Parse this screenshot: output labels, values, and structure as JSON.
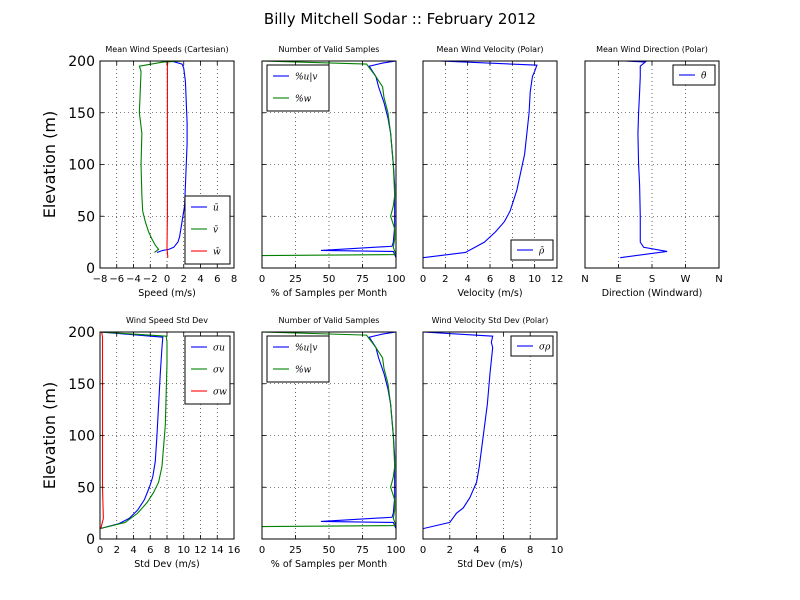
{
  "figure": {
    "title": "Billy Mitchell Sodar :: February 2012"
  },
  "chart_data": [
    {
      "type": "line",
      "title": "Mean Wind Speeds (Cartesian)",
      "xlabel": "Speed (m/s)",
      "ylabel": "Elevation (m)",
      "xlim": [
        -8,
        8
      ],
      "ylim": [
        0,
        200
      ],
      "xticks": [
        -8,
        -6,
        -4,
        -2,
        0,
        2,
        4,
        6,
        8
      ],
      "xtick_labels": [
        "−8",
        "−6",
        "−4",
        "−2",
        "0",
        "2",
        "4",
        "6",
        "8"
      ],
      "yticks": [
        0,
        50,
        100,
        150,
        200
      ],
      "ytick_labels": [
        "0",
        "50",
        "100",
        "150",
        "200"
      ],
      "grid": true,
      "legend": "lower-right",
      "series": [
        {
          "name": "ū",
          "color": "#0000ff",
          "points": [
            [
              -1.2,
              15
            ],
            [
              -0.5,
              17
            ],
            [
              0.2,
              18
            ],
            [
              0.8,
              20
            ],
            [
              1.3,
              25
            ],
            [
              1.5,
              30
            ],
            [
              1.7,
              40
            ],
            [
              1.9,
              50
            ],
            [
              2.1,
              60
            ],
            [
              2.2,
              80
            ],
            [
              2.3,
              100
            ],
            [
              2.4,
              120
            ],
            [
              2.4,
              140
            ],
            [
              2.3,
              160
            ],
            [
              2.2,
              180
            ],
            [
              2.0,
              193
            ],
            [
              1.8,
              197
            ],
            [
              0.5,
              200
            ]
          ]
        },
        {
          "name": "v̄",
          "color": "#008000",
          "points": [
            [
              -1.5,
              15
            ],
            [
              -1.0,
              18
            ],
            [
              -1.4,
              22
            ],
            [
              -1.8,
              28
            ],
            [
              -2.2,
              35
            ],
            [
              -2.6,
              45
            ],
            [
              -2.9,
              55
            ],
            [
              -3.0,
              70
            ],
            [
              -3.1,
              100
            ],
            [
              -3.0,
              130
            ],
            [
              -3.3,
              150
            ],
            [
              -3.2,
              170
            ],
            [
              -3.1,
              190
            ],
            [
              -3.3,
              195
            ],
            [
              -0.5,
              199
            ],
            [
              2.0,
              200
            ]
          ]
        },
        {
          "name": "w̄",
          "color": "#ff0000",
          "points": [
            [
              0.1,
              10
            ],
            [
              0.0,
              20
            ],
            [
              0.05,
              50
            ],
            [
              0.05,
              100
            ],
            [
              0.05,
              150
            ],
            [
              0.05,
              195
            ],
            [
              0.1,
              200
            ]
          ]
        }
      ]
    },
    {
      "type": "line",
      "title": "Number of Valid Samples",
      "xlabel": "% of Samples per Month",
      "ylabel": "",
      "xlim": [
        0,
        100
      ],
      "ylim": [
        0,
        200
      ],
      "xticks": [
        0,
        25,
        50,
        75,
        100
      ],
      "xtick_labels": [
        "0",
        "25",
        "50",
        "75",
        "100"
      ],
      "yticks": [
        0,
        50,
        100,
        150,
        200
      ],
      "ytick_labels": [],
      "grid": true,
      "legend": "upper-left",
      "series": [
        {
          "name": "%u|v",
          "color": "#0000ff",
          "points": [
            [
              100,
              10
            ],
            [
              98,
              16
            ],
            [
              44,
              17
            ],
            [
              97,
              21
            ],
            [
              98,
              25
            ],
            [
              99,
              40
            ],
            [
              99,
              60
            ],
            [
              99,
              80
            ],
            [
              98,
              100
            ],
            [
              96,
              130
            ],
            [
              94,
              145
            ],
            [
              91,
              160
            ],
            [
              87,
              175
            ],
            [
              85,
              185
            ],
            [
              80,
              195
            ],
            [
              90,
              198
            ],
            [
              100,
              200
            ]
          ]
        },
        {
          "name": "%w",
          "color": "#008000",
          "points": [
            [
              0,
              12
            ],
            [
              100,
              13
            ],
            [
              98,
              20
            ],
            [
              99,
              28
            ],
            [
              99,
              38
            ],
            [
              96,
              50
            ],
            [
              98,
              60
            ],
            [
              99,
              70
            ],
            [
              98,
              100
            ],
            [
              96,
              130
            ],
            [
              94,
              150
            ],
            [
              91,
              165
            ],
            [
              90,
              175
            ],
            [
              85,
              185
            ],
            [
              78,
              197
            ],
            [
              0,
              200
            ]
          ]
        }
      ]
    },
    {
      "type": "line",
      "title": "Mean Wind Velocity (Polar)",
      "xlabel": "Velocity (m/s)",
      "ylabel": "",
      "xlim": [
        0,
        12
      ],
      "ylim": [
        0,
        200
      ],
      "xticks": [
        0,
        2,
        4,
        6,
        8,
        10,
        12
      ],
      "xtick_labels": [
        "0",
        "2",
        "4",
        "6",
        "8",
        "10",
        "12"
      ],
      "yticks": [
        0,
        50,
        100,
        150,
        200
      ],
      "ytick_labels": [],
      "grid": true,
      "legend": "lower-right",
      "series": [
        {
          "name": "ρ̄",
          "color": "#0000ff",
          "points": [
            [
              0,
              10
            ],
            [
              3.8,
              15
            ],
            [
              5.5,
              25
            ],
            [
              6.5,
              35
            ],
            [
              7.3,
              45
            ],
            [
              7.8,
              55
            ],
            [
              8.1,
              65
            ],
            [
              8.4,
              75
            ],
            [
              8.7,
              90
            ],
            [
              9.1,
              110
            ],
            [
              9.3,
              130
            ],
            [
              9.5,
              150
            ],
            [
              9.6,
              170
            ],
            [
              9.8,
              185
            ],
            [
              10.0,
              190
            ],
            [
              10.2,
              196
            ],
            [
              1.5,
              200
            ]
          ]
        }
      ]
    },
    {
      "type": "line",
      "title": "Mean Wind Direction (Polar)",
      "xlabel": "Direction (Windward)",
      "ylabel": "",
      "xlim": [
        0,
        4
      ],
      "ylim": [
        0,
        200
      ],
      "xticks": [
        0,
        1,
        2,
        3,
        4
      ],
      "xtick_labels": [
        "N",
        "E",
        "S",
        "W",
        "N"
      ],
      "yticks": [
        0,
        50,
        100,
        150,
        200
      ],
      "ytick_labels": [],
      "grid": true,
      "legend": "upper-right",
      "series": [
        {
          "name": "θ̄",
          "color": "#0000ff",
          "points": [
            [
              1.05,
              10
            ],
            [
              2.45,
              16
            ],
            [
              1.75,
              20
            ],
            [
              1.65,
              25
            ],
            [
              1.65,
              50
            ],
            [
              1.63,
              80
            ],
            [
              1.6,
              100
            ],
            [
              1.58,
              130
            ],
            [
              1.6,
              150
            ],
            [
              1.63,
              170
            ],
            [
              1.65,
              185
            ],
            [
              1.65,
              195
            ],
            [
              1.8,
              199
            ],
            [
              1.2,
              200
            ]
          ]
        }
      ]
    },
    {
      "type": "line",
      "title": "Wind Speed Std Dev",
      "xlabel": "Std Dev (m/s)",
      "ylabel": "Elevation (m)",
      "xlim": [
        0,
        16
      ],
      "ylim": [
        0,
        200
      ],
      "xticks": [
        0,
        2,
        4,
        6,
        8,
        10,
        12,
        14,
        16
      ],
      "xtick_labels": [
        "0",
        "2",
        "4",
        "6",
        "8",
        "10",
        "12",
        "14",
        "16"
      ],
      "yticks": [
        0,
        50,
        100,
        150,
        200
      ],
      "ytick_labels": [
        "0",
        "50",
        "100",
        "150",
        "200"
      ],
      "grid": true,
      "legend": "upper-right",
      "series": [
        {
          "name": "σu",
          "color": "#0000ff",
          "points": [
            [
              0,
              10
            ],
            [
              2.3,
              15
            ],
            [
              3.5,
              20
            ],
            [
              4.5,
              28
            ],
            [
              5.3,
              38
            ],
            [
              5.9,
              50
            ],
            [
              6.3,
              60
            ],
            [
              6.6,
              75
            ],
            [
              6.8,
              100
            ],
            [
              7.0,
              130
            ],
            [
              7.2,
              160
            ],
            [
              7.4,
              185
            ],
            [
              7.5,
              195
            ],
            [
              0,
              200
            ]
          ]
        },
        {
          "name": "σv",
          "color": "#008000",
          "points": [
            [
              0,
              10
            ],
            [
              3.0,
              16
            ],
            [
              4.5,
              25
            ],
            [
              5.6,
              35
            ],
            [
              6.4,
              45
            ],
            [
              7.0,
              55
            ],
            [
              7.4,
              70
            ],
            [
              7.6,
              90
            ],
            [
              7.8,
              110
            ],
            [
              7.9,
              140
            ],
            [
              8.0,
              170
            ],
            [
              8.0,
              190
            ],
            [
              7.9,
              196
            ],
            [
              0,
              200
            ]
          ]
        },
        {
          "name": "σw",
          "color": "#ff0000",
          "points": [
            [
              0.1,
              10
            ],
            [
              0.4,
              20
            ],
            [
              0.3,
              50
            ],
            [
              0.3,
              100
            ],
            [
              0.3,
              150
            ],
            [
              0.3,
              195
            ],
            [
              0.2,
              200
            ]
          ]
        }
      ]
    },
    {
      "type": "line",
      "title": "Number of Valid Samples",
      "xlabel": "% of Samples per Month",
      "ylabel": "",
      "xlim": [
        0,
        100
      ],
      "ylim": [
        0,
        200
      ],
      "xticks": [
        0,
        25,
        50,
        75,
        100
      ],
      "xtick_labels": [
        "0",
        "25",
        "50",
        "75",
        "100"
      ],
      "yticks": [
        0,
        50,
        100,
        150,
        200
      ],
      "ytick_labels": [],
      "grid": true,
      "legend": "upper-left",
      "series": [
        {
          "name": "%u|v",
          "color": "#0000ff",
          "points": [
            [
              100,
              10
            ],
            [
              98,
              16
            ],
            [
              44,
              17
            ],
            [
              97,
              21
            ],
            [
              98,
              25
            ],
            [
              99,
              40
            ],
            [
              99,
              60
            ],
            [
              99,
              80
            ],
            [
              98,
              100
            ],
            [
              96,
              130
            ],
            [
              94,
              145
            ],
            [
              91,
              160
            ],
            [
              87,
              175
            ],
            [
              85,
              185
            ],
            [
              80,
              195
            ],
            [
              90,
              198
            ],
            [
              100,
              200
            ]
          ]
        },
        {
          "name": "%w",
          "color": "#008000",
          "points": [
            [
              0,
              12
            ],
            [
              100,
              13
            ],
            [
              98,
              20
            ],
            [
              99,
              28
            ],
            [
              99,
              38
            ],
            [
              96,
              50
            ],
            [
              98,
              60
            ],
            [
              99,
              70
            ],
            [
              98,
              100
            ],
            [
              96,
              130
            ],
            [
              94,
              150
            ],
            [
              91,
              165
            ],
            [
              90,
              175
            ],
            [
              85,
              185
            ],
            [
              78,
              197
            ],
            [
              0,
              200
            ]
          ]
        }
      ]
    },
    {
      "type": "line",
      "title": "Wind Velocity Std Dev (Polar)",
      "xlabel": "Std Dev (m/s)",
      "ylabel": "",
      "xlim": [
        0,
        10
      ],
      "ylim": [
        0,
        200
      ],
      "xticks": [
        0,
        2,
        4,
        6,
        8,
        10
      ],
      "xtick_labels": [
        "0",
        "2",
        "4",
        "6",
        "8",
        "10"
      ],
      "yticks": [
        0,
        50,
        100,
        150,
        200
      ],
      "ytick_labels": [],
      "grid": true,
      "legend": "upper-right",
      "series": [
        {
          "name": "σρ",
          "color": "#0000ff",
          "points": [
            [
              0,
              10
            ],
            [
              2.0,
              16
            ],
            [
              2.5,
              25
            ],
            [
              3.0,
              30
            ],
            [
              3.5,
              40
            ],
            [
              4.0,
              55
            ],
            [
              4.2,
              70
            ],
            [
              4.5,
              100
            ],
            [
              4.8,
              130
            ],
            [
              5.0,
              160
            ],
            [
              5.2,
              185
            ],
            [
              5.1,
              190
            ],
            [
              5.2,
              196
            ],
            [
              0,
              200
            ]
          ]
        }
      ]
    }
  ]
}
